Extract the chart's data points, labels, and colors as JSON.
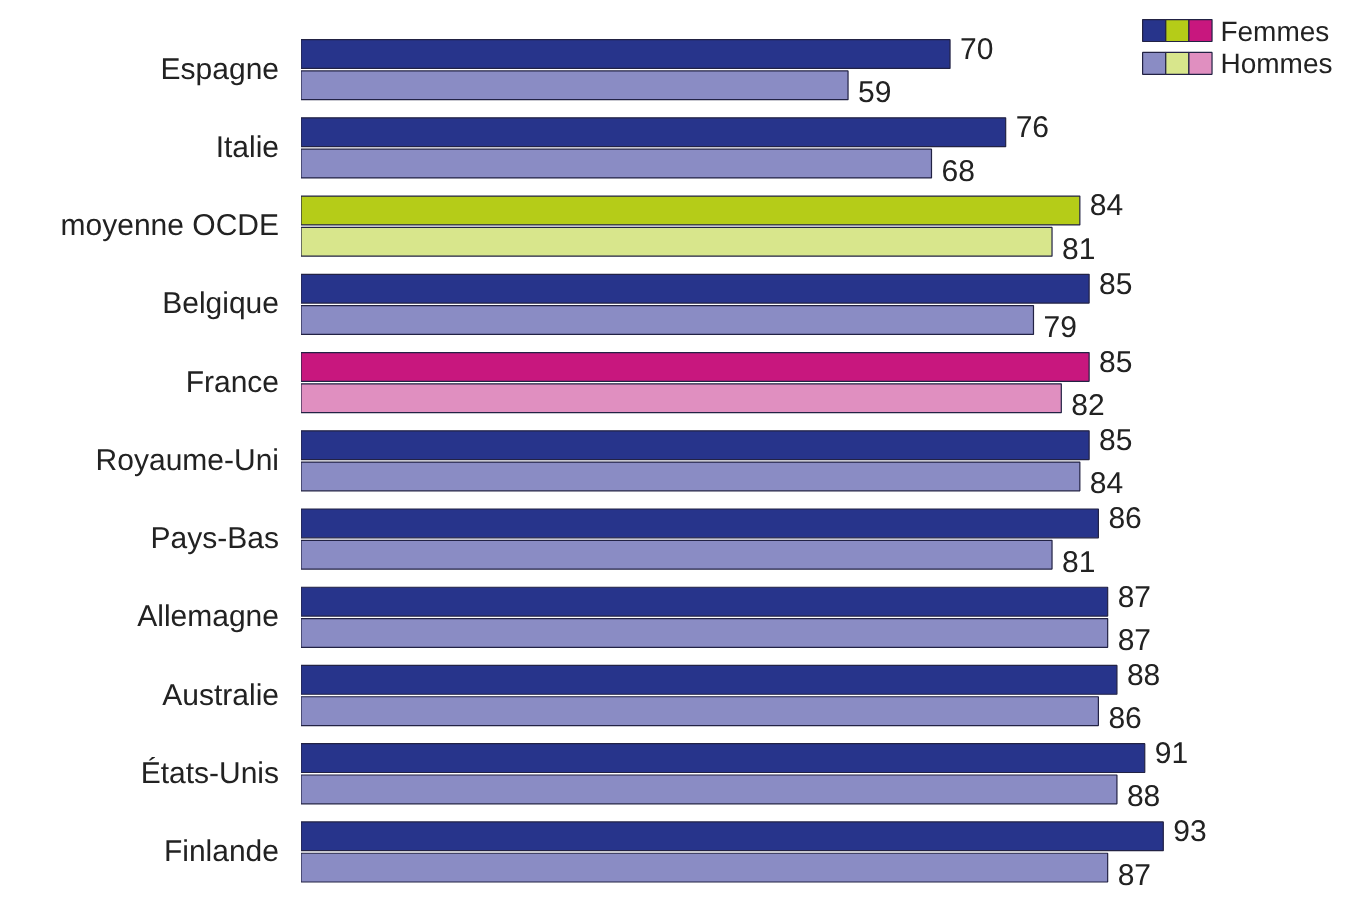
{
  "chart_data": {
    "type": "bar",
    "orientation": "horizontal",
    "data_labels": true,
    "legend": "top right",
    "grid": false,
    "categories": [
      "Espagne",
      "Italie",
      "moyenne OCDE",
      "Belgique",
      "France",
      "Royaume-Uni",
      "Pays-Bas",
      "Allemagne",
      "Australie",
      "États-Unis",
      "Finlande"
    ],
    "series": [
      {
        "name": "Femmes",
        "color": "#27348b",
        "colors": [
          "#27348b",
          "#27348b",
          "#b5cc18",
          "#27348b",
          "#c8177e",
          "#27348b",
          "#27348b",
          "#27348b",
          "#27348b",
          "#27348b",
          "#27348b"
        ],
        "values": [
          70,
          76,
          84,
          85,
          85,
          85,
          86,
          87,
          88,
          91,
          93
        ]
      },
      {
        "name": "Hommes",
        "color": "#8a8cc4",
        "colors": [
          "#8a8cc4",
          "#8a8cc4",
          "#d8e68c",
          "#8a8cc4",
          "#e08fc0",
          "#8a8cc4",
          "#8a8cc4",
          "#8a8cc4",
          "#8a8cc4",
          "#8a8cc4",
          "#8a8cc4"
        ],
        "values": [
          59,
          68,
          81,
          79,
          82,
          84,
          81,
          87,
          86,
          88,
          87
        ]
      }
    ]
  }
}
